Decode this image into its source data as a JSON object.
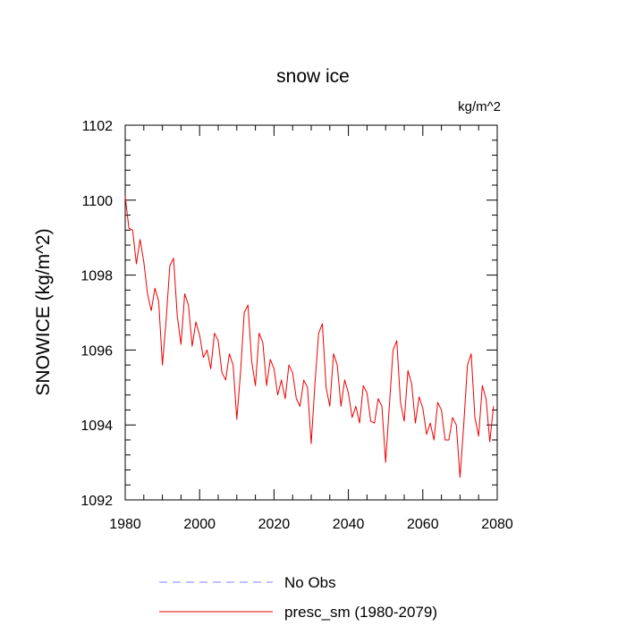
{
  "chart_data": {
    "type": "line",
    "title": "snow ice",
    "units": "kg/m^2",
    "ylabel": "SNOWICE  (kg/m^2)",
    "xlabel": "",
    "xlim": [
      1980,
      2080
    ],
    "ylim": [
      1092,
      1102
    ],
    "xticks": [
      1980,
      2000,
      2020,
      2040,
      2060,
      2080
    ],
    "xtick_labels": [
      "1980",
      "2000",
      "2020",
      "2040",
      "2060",
      "2080"
    ],
    "yticks": [
      1092,
      1094,
      1096,
      1098,
      1100,
      1102
    ],
    "ytick_labels": [
      "1092",
      "1094",
      "1096",
      "1098",
      "1100",
      "1102"
    ],
    "grid": false,
    "legend_position": "bottom",
    "legend": [
      {
        "label": "No Obs",
        "color": "#8080ff",
        "style": "dashed"
      },
      {
        "label": "presc_sm (1980-2079)",
        "color": "#ee0000",
        "style": "solid"
      }
    ],
    "series": [
      {
        "name": "presc_sm (1980-2079)",
        "color": "#ee0000",
        "x": [
          1980,
          1981,
          1982,
          1983,
          1984,
          1985,
          1986,
          1987,
          1988,
          1989,
          1990,
          1991,
          1992,
          1993,
          1994,
          1995,
          1996,
          1997,
          1998,
          1999,
          2000,
          2001,
          2002,
          2003,
          2004,
          2005,
          2006,
          2007,
          2008,
          2009,
          2010,
          2011,
          2012,
          2013,
          2014,
          2015,
          2016,
          2017,
          2018,
          2019,
          2020,
          2021,
          2022,
          2023,
          2024,
          2025,
          2026,
          2027,
          2028,
          2029,
          2030,
          2031,
          2032,
          2033,
          2034,
          2035,
          2036,
          2037,
          2038,
          2039,
          2040,
          2041,
          2042,
          2043,
          2044,
          2045,
          2046,
          2047,
          2048,
          2049,
          2050,
          2051,
          2052,
          2053,
          2054,
          2055,
          2056,
          2057,
          2058,
          2059,
          2060,
          2061,
          2062,
          2063,
          2064,
          2065,
          2066,
          2067,
          2068,
          2069,
          2070,
          2071,
          2072,
          2073,
          2074,
          2075,
          2076,
          2077,
          2078,
          2079
        ],
        "values": [
          1100.1,
          1099.25,
          1099.2,
          1098.3,
          1098.95,
          1098.35,
          1097.5,
          1097.05,
          1097.65,
          1097.3,
          1095.6,
          1096.8,
          1098.25,
          1098.45,
          1096.9,
          1096.15,
          1097.5,
          1097.2,
          1096.1,
          1096.75,
          1096.4,
          1095.8,
          1096.0,
          1095.5,
          1096.45,
          1096.25,
          1095.4,
          1095.2,
          1095.9,
          1095.6,
          1094.15,
          1095.4,
          1097.0,
          1097.2,
          1095.7,
          1095.05,
          1096.45,
          1096.2,
          1095.05,
          1095.75,
          1095.5,
          1094.8,
          1095.2,
          1094.7,
          1095.6,
          1095.4,
          1094.7,
          1094.5,
          1095.2,
          1095.0,
          1093.5,
          1095.1,
          1096.45,
          1096.7,
          1095.0,
          1094.5,
          1095.9,
          1095.6,
          1094.5,
          1095.2,
          1094.85,
          1094.2,
          1094.5,
          1094.05,
          1095.05,
          1094.85,
          1094.1,
          1094.05,
          1094.7,
          1094.5,
          1093.0,
          1094.5,
          1096.0,
          1096.25,
          1094.6,
          1094.1,
          1095.45,
          1095.1,
          1094.05,
          1094.75,
          1094.45,
          1093.75,
          1094.05,
          1093.6,
          1094.6,
          1094.4,
          1093.6,
          1093.6,
          1094.2,
          1094.0,
          1092.6,
          1094.0,
          1095.6,
          1095.9,
          1094.2,
          1093.7,
          1095.05,
          1094.7,
          1093.55,
          1094.5
        ]
      }
    ]
  }
}
